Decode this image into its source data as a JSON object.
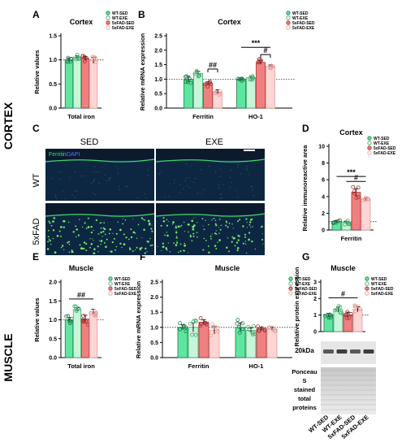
{
  "side_labels": {
    "cortex": "CORTEX",
    "muscle": "MUSCLE"
  },
  "legend": [
    "WT-SED",
    "WT-EXE",
    "5xFAD-SED",
    "5xFAD-EXE"
  ],
  "colors": {
    "WT-SED": "#5ee6a0",
    "WT-EXE": "#c6f5d8",
    "5xFAD-SED": "#f08080",
    "5xFAD-EXE": "#fcd6d4"
  },
  "stroke_colors": {
    "WT-SED": "#1f7a4a",
    "WT-EXE": "#3ea86a",
    "5xFAD-SED": "#a23030",
    "5xFAD-EXE": "#e49a98"
  },
  "micro": {
    "conditions": [
      "SED",
      "EXE"
    ],
    "genotypes": [
      "WT",
      "5xFAD"
    ],
    "stain_ferritin": "Ferritin",
    "stain_dapi": "DAPI"
  },
  "blot": {
    "size_label": "20kDa",
    "ponceau_lines": [
      "Ponceau",
      "S",
      "stained",
      "total",
      "proteins"
    ],
    "lane_labels": [
      "WT-SED",
      "WT-EXE",
      "5xFAD-SED",
      "5xFAD-EXE"
    ]
  },
  "chart_data": [
    {
      "panel": "A",
      "type": "bar",
      "title": "Cortex",
      "ylabel": "Relative values",
      "ylim": [
        0,
        1.5
      ],
      "yticks": [
        0,
        0.5,
        1.0,
        1.5
      ],
      "ytick_labels": [
        "0.0",
        "0.5",
        "1.0",
        "1.5"
      ],
      "categories": [
        "Total iron"
      ],
      "series": [
        {
          "values": [
            1.0
          ]
        },
        {
          "values": [
            1.06
          ]
        },
        {
          "values": [
            1.03
          ]
        },
        {
          "values": [
            0.99
          ]
        }
      ],
      "errors": [
        0.04,
        0.03,
        0.04,
        0.06
      ],
      "ref_line": 1.0,
      "annotations": []
    },
    {
      "panel": "B",
      "type": "bar",
      "title": "Cortex",
      "ylabel": "Relative mRNA expression",
      "ylim": [
        0,
        2.5
      ],
      "yticks": [
        0,
        0.5,
        1.0,
        1.5,
        2.0,
        2.5
      ],
      "ytick_labels": [
        "0.0",
        "0.5",
        "1.0",
        "1.5",
        "2.0",
        "2.5"
      ],
      "categories": [
        "Ferritin",
        "HO-1"
      ],
      "series": [
        {
          "values": [
            1.0,
            1.0
          ]
        },
        {
          "values": [
            1.2,
            1.05
          ]
        },
        {
          "values": [
            0.85,
            1.58
          ]
        },
        {
          "values": [
            0.55,
            1.45
          ]
        }
      ],
      "errors": [
        [
          0.1,
          0.04
        ],
        [
          0.07,
          0.05
        ],
        [
          0.06,
          0.07
        ],
        [
          0.08,
          0.04
        ]
      ],
      "ref_line": 1.0,
      "annotations": [
        {
          "text": "##",
          "from": [
            0,
            2
          ],
          "to": [
            0,
            3
          ],
          "y": 1.35
        },
        {
          "text": "***",
          "from": [
            1,
            0
          ],
          "to": [
            1,
            3
          ],
          "y": 2.1
        },
        {
          "text": "#",
          "from": [
            1,
            2
          ],
          "to": [
            1,
            3
          ],
          "y": 1.85
        }
      ]
    },
    {
      "panel": "D",
      "type": "bar",
      "title": "Cortex",
      "ylabel": "Relative immunoreactive area",
      "ylim": [
        0,
        10
      ],
      "yticks": [
        0,
        2,
        4,
        6,
        8,
        10
      ],
      "ytick_labels": [
        "0",
        "2",
        "4",
        "6",
        "8",
        "10"
      ],
      "categories": [
        "Ferritin"
      ],
      "series": [
        {
          "values": [
            1.0
          ]
        },
        {
          "values": [
            0.9
          ]
        },
        {
          "values": [
            4.5
          ]
        },
        {
          "values": [
            3.7
          ]
        }
      ],
      "errors": [
        0.15,
        0.15,
        0.45,
        0.15
      ],
      "ref_line": 1.0,
      "annotations": [
        {
          "text": "***",
          "from": [
            0,
            0
          ],
          "to": [
            0,
            3
          ],
          "y": 6.4
        },
        {
          "text": "#",
          "from": [
            0,
            1
          ],
          "to": [
            0,
            3
          ],
          "y": 5.8
        }
      ]
    },
    {
      "panel": "E",
      "type": "bar",
      "title": "Muscle",
      "ylabel": "Relative values",
      "ylim": [
        0,
        2.0
      ],
      "yticks": [
        0,
        0.5,
        1.0,
        1.5,
        2.0
      ],
      "ytick_labels": [
        "0.0",
        "0.5",
        "1.0",
        "1.5",
        "2.0"
      ],
      "categories": [
        "Total iron"
      ],
      "series": [
        {
          "values": [
            1.0
          ]
        },
        {
          "values": [
            1.27
          ]
        },
        {
          "values": [
            1.02
          ]
        },
        {
          "values": [
            1.22
          ]
        }
      ],
      "errors": [
        0.06,
        0.05,
        0.1,
        0.06
      ],
      "ref_line": 1.0,
      "annotations": [
        {
          "text": "##",
          "from": [
            0,
            0
          ],
          "to": [
            0,
            3
          ],
          "y": 1.55
        }
      ]
    },
    {
      "panel": "F",
      "type": "bar",
      "title": "Muscle",
      "ylabel": "Relative mRNA expression",
      "ylim": [
        0,
        2.5
      ],
      "yticks": [
        0,
        0.5,
        1.0,
        1.5,
        2.0,
        2.5
      ],
      "ytick_labels": [
        "0.0",
        "0.5",
        "1.0",
        "1.5",
        "2.0",
        "2.5"
      ],
      "categories": [
        "Ferritin",
        "HO-1"
      ],
      "series": [
        {
          "values": [
            1.0,
            1.0
          ]
        },
        {
          "values": [
            1.0,
            0.9
          ]
        },
        {
          "values": [
            1.17,
            0.95
          ]
        },
        {
          "values": [
            0.9,
            0.95
          ]
        }
      ],
      "errors": [
        [
          0.08,
          0.15
        ],
        [
          0.15,
          0.08
        ],
        [
          0.08,
          0.05
        ],
        [
          0.12,
          0.05
        ]
      ],
      "ref_line": 1.0,
      "annotations": []
    },
    {
      "panel": "G",
      "type": "bar",
      "title": "Muscle",
      "ylabel": "Relative protein expression",
      "ylim": [
        0,
        3
      ],
      "yticks": [
        0,
        1,
        2,
        3
      ],
      "ytick_labels": [
        "0",
        "1",
        "2",
        "3"
      ],
      "categories": [
        ""
      ],
      "series": [
        {
          "values": [
            1.0
          ]
        },
        {
          "values": [
            1.33
          ]
        },
        {
          "values": [
            1.02
          ]
        },
        {
          "values": [
            1.35
          ]
        }
      ],
      "errors": [
        0.1,
        0.15,
        0.15,
        0.15
      ],
      "ref_line": 1.0,
      "annotations": [
        {
          "text": "#",
          "from": [
            0,
            0
          ],
          "to": [
            0,
            3
          ],
          "y": 2.05
        }
      ]
    }
  ]
}
